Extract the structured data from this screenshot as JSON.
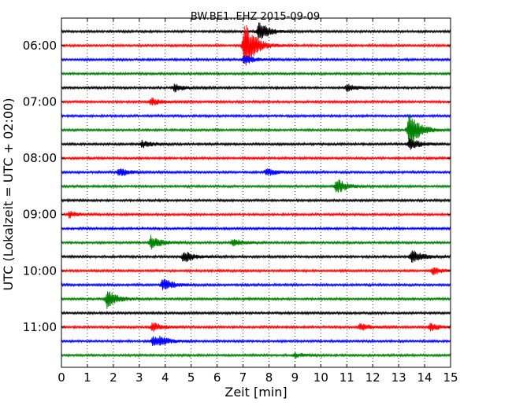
{
  "chart_data": {
    "type": "line",
    "title": "BW.BE1..EHZ 2015-09-09",
    "xlabel": "Zeit  [min]",
    "ylabel": "UTC (Lokalzeit = UTC + 02:00)",
    "xlim": [
      0,
      15
    ],
    "x_ticks": [
      "0",
      "1",
      "2",
      "3",
      "4",
      "5",
      "6",
      "7",
      "8",
      "9",
      "10",
      "11",
      "12",
      "13",
      "14",
      "15"
    ],
    "y_tick_labels": [
      "06:00",
      "07:00",
      "08:00",
      "09:00",
      "10:00",
      "11:00"
    ],
    "grid": "vertical dotted",
    "trace_colors": [
      "#000000",
      "#ff0000",
      "#0000ff",
      "#008000"
    ],
    "traces": [
      {
        "start": "05:45",
        "color": "#000000",
        "events": [
          {
            "t": 7.6,
            "a": 14
          }
        ]
      },
      {
        "start": "06:00",
        "color": "#ff0000",
        "events": [
          {
            "t": 7.05,
            "a": 24
          },
          {
            "t": 7.1,
            "a": 10
          }
        ]
      },
      {
        "start": "06:15",
        "color": "#0000ff",
        "events": [
          {
            "t": 7.05,
            "a": 6
          }
        ]
      },
      {
        "start": "06:30",
        "color": "#008000",
        "events": []
      },
      {
        "start": "06:45",
        "color": "#000000",
        "events": [
          {
            "t": 4.35,
            "a": 5
          },
          {
            "t": 11.0,
            "a": 5
          }
        ]
      },
      {
        "start": "07:00",
        "color": "#ff0000",
        "events": [
          {
            "t": 3.45,
            "a": 5
          }
        ]
      },
      {
        "start": "07:15",
        "color": "#0000ff",
        "events": []
      },
      {
        "start": "07:30",
        "color": "#008000",
        "events": [
          {
            "t": 13.4,
            "a": 26
          }
        ]
      },
      {
        "start": "07:45",
        "color": "#000000",
        "events": [
          {
            "t": 3.1,
            "a": 5
          },
          {
            "t": 13.4,
            "a": 8
          }
        ]
      },
      {
        "start": "08:00",
        "color": "#ff0000",
        "events": []
      },
      {
        "start": "08:15",
        "color": "#0000ff",
        "events": [
          {
            "t": 2.2,
            "a": 6
          },
          {
            "t": 7.9,
            "a": 5
          }
        ]
      },
      {
        "start": "08:30",
        "color": "#008000",
        "events": [
          {
            "t": 10.6,
            "a": 10
          }
        ]
      },
      {
        "start": "08:45",
        "color": "#000000",
        "events": []
      },
      {
        "start": "09:00",
        "color": "#ff0000",
        "events": [
          {
            "t": 0.3,
            "a": 4
          }
        ]
      },
      {
        "start": "09:15",
        "color": "#0000ff",
        "events": []
      },
      {
        "start": "09:30",
        "color": "#008000",
        "events": [
          {
            "t": 3.45,
            "a": 9
          },
          {
            "t": 6.6,
            "a": 5
          }
        ]
      },
      {
        "start": "09:45",
        "color": "#000000",
        "events": [
          {
            "t": 4.7,
            "a": 8
          },
          {
            "t": 13.5,
            "a": 10
          }
        ]
      },
      {
        "start": "10:00",
        "color": "#ff0000",
        "events": [
          {
            "t": 14.3,
            "a": 5
          }
        ]
      },
      {
        "start": "10:15",
        "color": "#0000ff",
        "events": [
          {
            "t": 3.9,
            "a": 9
          }
        ]
      },
      {
        "start": "10:30",
        "color": "#008000",
        "events": [
          {
            "t": 1.75,
            "a": 12
          }
        ]
      },
      {
        "start": "10:45",
        "color": "#000000",
        "events": []
      },
      {
        "start": "11:00",
        "color": "#ff0000",
        "events": [
          {
            "t": 3.5,
            "a": 6
          },
          {
            "t": 11.5,
            "a": 5
          },
          {
            "t": 14.2,
            "a": 5
          }
        ]
      },
      {
        "start": "11:15",
        "color": "#0000ff",
        "events": [
          {
            "t": 3.5,
            "a": 6
          },
          {
            "t": 3.8,
            "a": 4
          }
        ]
      },
      {
        "start": "11:30",
        "color": "#008000",
        "events": [
          {
            "t": 9.0,
            "a": 3
          }
        ]
      }
    ]
  }
}
